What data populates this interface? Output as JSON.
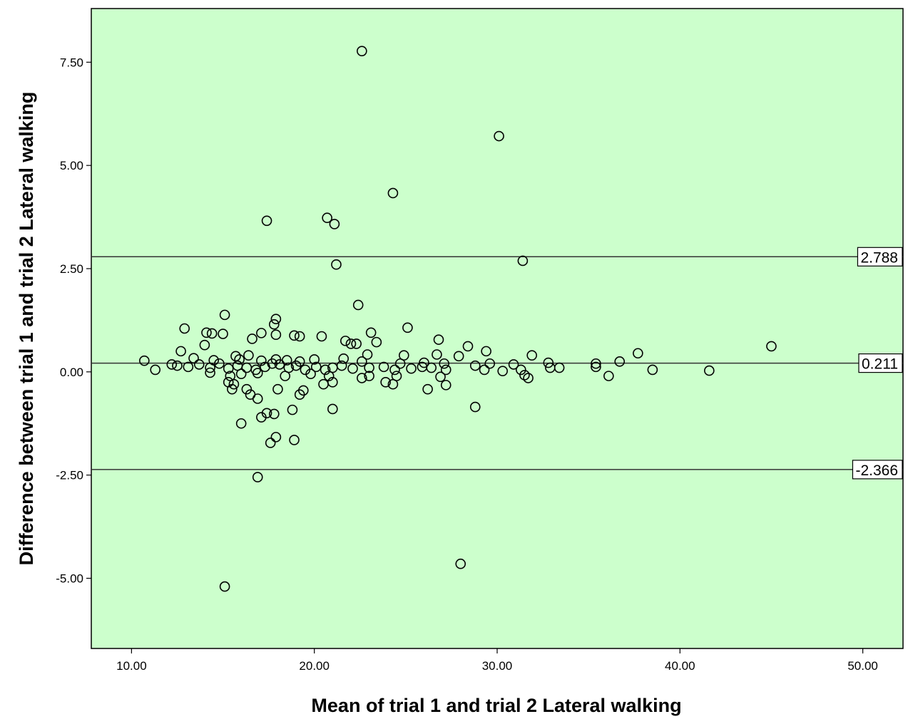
{
  "chart_data": {
    "type": "scatter",
    "title": "",
    "xlabel": "Mean of trial 1 and trial 2 Lateral walking",
    "ylabel": "Difference between trial 1 and trial 2 Lateral walking",
    "xlim": [
      7.8,
      52.2
    ],
    "ylim": [
      -6.7,
      8.8
    ],
    "x_ticks": [
      10,
      20,
      30,
      40,
      50
    ],
    "x_tick_labels": [
      "10.00",
      "20.00",
      "30.00",
      "40.00",
      "50.00"
    ],
    "y_ticks": [
      -5,
      -2.5,
      0,
      2.5,
      5,
      7.5
    ],
    "y_tick_labels": [
      "-5.00",
      "-2.50",
      "0.00",
      "2.50",
      "5.00",
      "7.50"
    ],
    "grid": false,
    "colors": {
      "plot_background": "#ccffcc",
      "marker": "#000000",
      "reference_line": "#333333"
    },
    "reference_lines": [
      {
        "value": 2.788,
        "label": "2.788"
      },
      {
        "value": 0.211,
        "label": "0.211"
      },
      {
        "value": -2.366,
        "label": "-2.366"
      }
    ],
    "points": [
      [
        22.6,
        7.77
      ],
      [
        30.1,
        5.71
      ],
      [
        24.3,
        4.33
      ],
      [
        17.4,
        3.66
      ],
      [
        20.7,
        3.73
      ],
      [
        21.1,
        3.58
      ],
      [
        31.4,
        2.69
      ],
      [
        21.2,
        2.6
      ],
      [
        22.4,
        1.62
      ],
      [
        15.1,
        1.38
      ],
      [
        17.9,
        1.28
      ],
      [
        17.8,
        1.15
      ],
      [
        12.9,
        1.05
      ],
      [
        25.1,
        1.07
      ],
      [
        14.1,
        0.95
      ],
      [
        14.4,
        0.93
      ],
      [
        17.1,
        0.94
      ],
      [
        23.1,
        0.95
      ],
      [
        15.0,
        0.92
      ],
      [
        17.9,
        0.9
      ],
      [
        18.9,
        0.88
      ],
      [
        19.2,
        0.86
      ],
      [
        20.4,
        0.86
      ],
      [
        16.6,
        0.8
      ],
      [
        21.7,
        0.75
      ],
      [
        26.8,
        0.78
      ],
      [
        22.0,
        0.68
      ],
      [
        22.3,
        0.68
      ],
      [
        23.4,
        0.72
      ],
      [
        14.0,
        0.65
      ],
      [
        28.4,
        0.62
      ],
      [
        45.0,
        0.62
      ],
      [
        12.7,
        0.5
      ],
      [
        29.4,
        0.5
      ],
      [
        16.4,
        0.4
      ],
      [
        15.7,
        0.38
      ],
      [
        22.9,
        0.42
      ],
      [
        24.9,
        0.4
      ],
      [
        26.7,
        0.42
      ],
      [
        31.9,
        0.4
      ],
      [
        37.7,
        0.45
      ],
      [
        13.4,
        0.33
      ],
      [
        14.5,
        0.28
      ],
      [
        15.9,
        0.3
      ],
      [
        17.1,
        0.27
      ],
      [
        17.9,
        0.3
      ],
      [
        18.5,
        0.28
      ],
      [
        19.2,
        0.25
      ],
      [
        20.0,
        0.3
      ],
      [
        21.6,
        0.32
      ],
      [
        22.6,
        0.25
      ],
      [
        24.7,
        0.2
      ],
      [
        26.0,
        0.22
      ],
      [
        27.1,
        0.2
      ],
      [
        27.9,
        0.38
      ],
      [
        28.8,
        0.15
      ],
      [
        29.6,
        0.2
      ],
      [
        30.9,
        0.18
      ],
      [
        32.8,
        0.22
      ],
      [
        35.4,
        0.2
      ],
      [
        36.7,
        0.25
      ],
      [
        10.7,
        0.27
      ],
      [
        11.3,
        0.05
      ],
      [
        12.2,
        0.18
      ],
      [
        12.5,
        0.15
      ],
      [
        13.1,
        0.12
      ],
      [
        13.7,
        0.18
      ],
      [
        14.3,
        0.1
      ],
      [
        14.8,
        0.2
      ],
      [
        15.3,
        0.08
      ],
      [
        15.8,
        0.15
      ],
      [
        16.3,
        0.1
      ],
      [
        16.8,
        0.05
      ],
      [
        17.3,
        0.12
      ],
      [
        17.7,
        0.2
      ],
      [
        18.1,
        0.18
      ],
      [
        18.6,
        0.1
      ],
      [
        19.0,
        0.15
      ],
      [
        19.5,
        0.05
      ],
      [
        20.1,
        0.12
      ],
      [
        20.6,
        0.05
      ],
      [
        21.0,
        0.1
      ],
      [
        21.5,
        0.15
      ],
      [
        22.1,
        0.08
      ],
      [
        23.0,
        0.1
      ],
      [
        23.8,
        0.12
      ],
      [
        24.4,
        0.05
      ],
      [
        25.3,
        0.08
      ],
      [
        25.9,
        0.12
      ],
      [
        26.4,
        0.1
      ],
      [
        27.2,
        0.05
      ],
      [
        29.3,
        0.05
      ],
      [
        30.3,
        0.02
      ],
      [
        31.3,
        0.05
      ],
      [
        32.9,
        0.1
      ],
      [
        33.4,
        0.1
      ],
      [
        35.4,
        0.12
      ],
      [
        38.5,
        0.05
      ],
      [
        41.6,
        0.03
      ],
      [
        14.3,
        -0.02
      ],
      [
        15.4,
        -0.1
      ],
      [
        16.0,
        -0.05
      ],
      [
        16.9,
        -0.03
      ],
      [
        18.4,
        -0.1
      ],
      [
        19.8,
        -0.05
      ],
      [
        20.8,
        -0.1
      ],
      [
        22.6,
        -0.15
      ],
      [
        23.0,
        -0.1
      ],
      [
        24.5,
        -0.1
      ],
      [
        26.9,
        -0.12
      ],
      [
        31.5,
        -0.08
      ],
      [
        31.7,
        -0.15
      ],
      [
        36.1,
        -0.1
      ],
      [
        15.3,
        -0.25
      ],
      [
        15.6,
        -0.3
      ],
      [
        20.5,
        -0.3
      ],
      [
        21.0,
        -0.25
      ],
      [
        23.9,
        -0.25
      ],
      [
        24.3,
        -0.3
      ],
      [
        15.5,
        -0.42
      ],
      [
        16.3,
        -0.42
      ],
      [
        18.0,
        -0.42
      ],
      [
        19.4,
        -0.45
      ],
      [
        26.2,
        -0.42
      ],
      [
        27.2,
        -0.32
      ],
      [
        16.5,
        -0.55
      ],
      [
        16.9,
        -0.65
      ],
      [
        19.2,
        -0.55
      ],
      [
        18.8,
        -0.92
      ],
      [
        21.0,
        -0.9
      ],
      [
        28.8,
        -0.85
      ],
      [
        17.4,
        -1.0
      ],
      [
        17.8,
        -1.02
      ],
      [
        17.1,
        -1.1
      ],
      [
        16.0,
        -1.25
      ],
      [
        17.9,
        -1.58
      ],
      [
        17.6,
        -1.72
      ],
      [
        18.9,
        -1.65
      ],
      [
        16.9,
        -2.55
      ],
      [
        28.0,
        -4.65
      ],
      [
        15.1,
        -5.2
      ]
    ]
  }
}
